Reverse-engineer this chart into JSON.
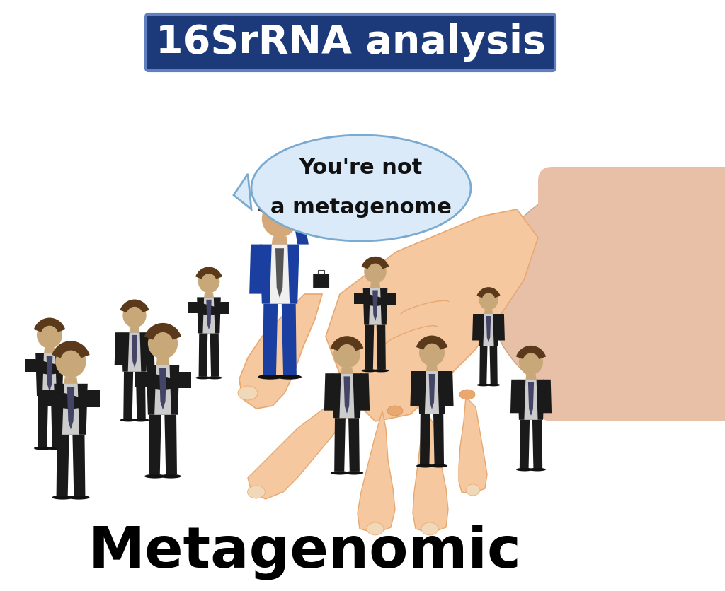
{
  "title_text": "16SrRNA analysis",
  "title_bg_color": "#1c3a7a",
  "title_text_color": "#ffffff",
  "title_border_color": "#6080c0",
  "bottom_text": "Metagenomic",
  "bottom_text_color": "#000000",
  "speech_text_line1": "You're not",
  "speech_text_line2": "a metagenome",
  "speech_bubble_fill": "#daeaf8",
  "speech_bubble_edge": "#7aaad0",
  "background_color": "#ffffff",
  "hand_skin_light": "#f5c8a0",
  "hand_skin_mid": "#e8a870",
  "hand_skin_dark": "#d4905a",
  "hand_nail": "#f0d8b8",
  "forearm_color": "#e8c0a8",
  "selected_figure_color": "#1a3fa0",
  "selected_figure_dark": "#122a70",
  "skin_color": "#d4a878",
  "shirt_color": "#f0f0f0",
  "tie_color": "#555555",
  "briefcase_color": "#1a1a1a",
  "black_suit_color": "#1a1a1a",
  "black_suit_mid": "#2a2a2a",
  "skin_face": "#c8a878",
  "figsize": [
    10.24,
    8.36
  ],
  "dpi": 100
}
